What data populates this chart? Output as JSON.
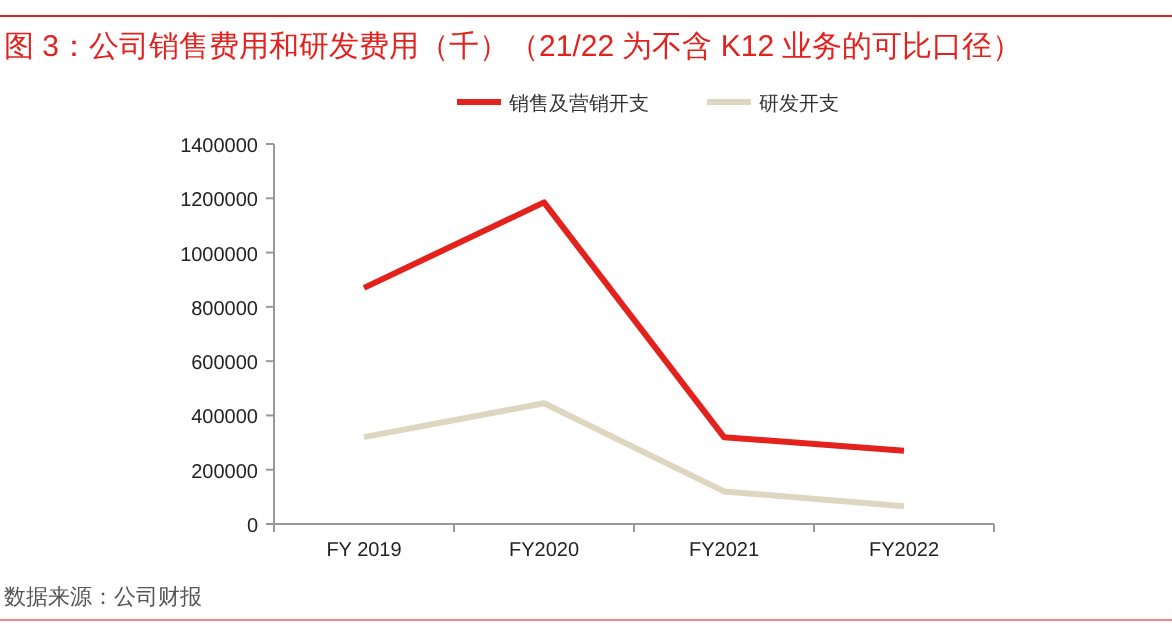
{
  "chart_data": {
    "type": "line",
    "title": "图 3：公司销售费用和研发费用（千）（21/22 为不含 K12 业务的可比口径）",
    "categories": [
      "FY 2019",
      "FY2020",
      "FY2021",
      "FY2022"
    ],
    "series": [
      {
        "name": "销售及营销开支",
        "color": "#e3221e",
        "values": [
          870000,
          1185000,
          320000,
          270000
        ]
      },
      {
        "name": "研发开支",
        "color": "#ddd6c1",
        "values": [
          320000,
          445000,
          120000,
          65000
        ]
      }
    ],
    "ylim": [
      0,
      1400000
    ],
    "yticks": [
      0,
      200000,
      400000,
      600000,
      800000,
      1000000,
      1200000,
      1400000
    ],
    "grid": false,
    "legend": "top",
    "marker": "none",
    "line_style": "solid",
    "annotations": [
      "数据来源：公司财报"
    ]
  }
}
